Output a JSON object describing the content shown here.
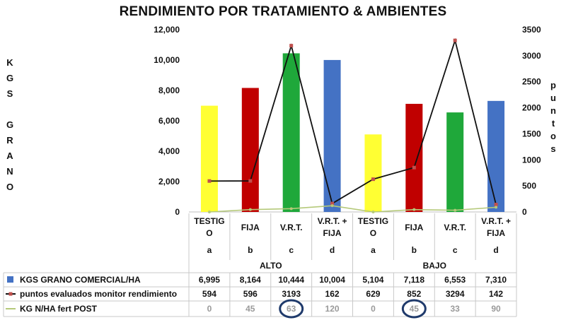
{
  "chart_data": {
    "type": "bar",
    "title": "RENDIMIENTO POR TRATAMIENTO & AMBIENTES",
    "ylabel": "KGS GRANO",
    "y2label": "puntos",
    "ylim": [
      0,
      12000
    ],
    "y2lim": [
      0,
      3500
    ],
    "yticks": [
      "0",
      "2,000",
      "4,000",
      "6,000",
      "8,000",
      "10,000",
      "12,000"
    ],
    "y2ticks": [
      "0",
      "500",
      "1000",
      "1500",
      "2000",
      "2500",
      "3000",
      "3500"
    ],
    "grid": false,
    "categories": [
      {
        "lines": [
          "TESTIG",
          "O"
        ],
        "letter": "a",
        "color": "#ffff33",
        "group": 0
      },
      {
        "lines": [
          "FIJA"
        ],
        "letter": "b",
        "color": "#c00000",
        "group": 0
      },
      {
        "lines": [
          "V.R.T."
        ],
        "letter": "c",
        "color": "#1fa83a",
        "group": 0
      },
      {
        "lines": [
          "V.R.T. +",
          "FIJA"
        ],
        "letter": "d",
        "color": "#4472c4",
        "group": 0
      },
      {
        "lines": [
          "TESTIG",
          "O"
        ],
        "letter": "a",
        "color": "#ffff33",
        "group": 1
      },
      {
        "lines": [
          "FIJA"
        ],
        "letter": "b",
        "color": "#c00000",
        "group": 1
      },
      {
        "lines": [
          "V.R.T."
        ],
        "letter": "c",
        "color": "#1fa83a",
        "group": 1
      },
      {
        "lines": [
          "V.R.T. +",
          "FIJA"
        ],
        "letter": "d",
        "color": "#4472c4",
        "group": 1
      }
    ],
    "groups": [
      "ALTO",
      "BAJO"
    ],
    "series": [
      {
        "name": "KGS GRANO COMERCIAL/HA",
        "kind": "bar",
        "axis": "left",
        "color": "#4472c4",
        "values": [
          6995,
          8164,
          10444,
          10004,
          5104,
          7118,
          6553,
          7310
        ],
        "labels": [
          "6,995",
          "8,164",
          "10,444",
          "10,004",
          "5,104",
          "7,118",
          "6,553",
          "7,310"
        ]
      },
      {
        "name": "puntos evaluados monitor rendimiento",
        "kind": "line",
        "axis": "right",
        "color": "#111111",
        "marker": "#c0504d",
        "values": [
          594,
          596,
          3193,
          162,
          629,
          852,
          3294,
          142
        ],
        "labels": [
          "594",
          "596",
          "3193",
          "162",
          "629",
          "852",
          "3294",
          "142"
        ]
      },
      {
        "name": "KG N/HA fert POST",
        "kind": "line",
        "axis": "right",
        "color": "#b5c97a",
        "values": [
          0,
          45,
          63,
          120,
          0,
          45,
          33,
          90
        ],
        "labels": [
          "0",
          "45",
          "63",
          "120",
          "0",
          "45",
          "33",
          "90"
        ]
      }
    ],
    "circled_cells": [
      2,
      5
    ],
    "circle_color": "#1f3a6b"
  }
}
